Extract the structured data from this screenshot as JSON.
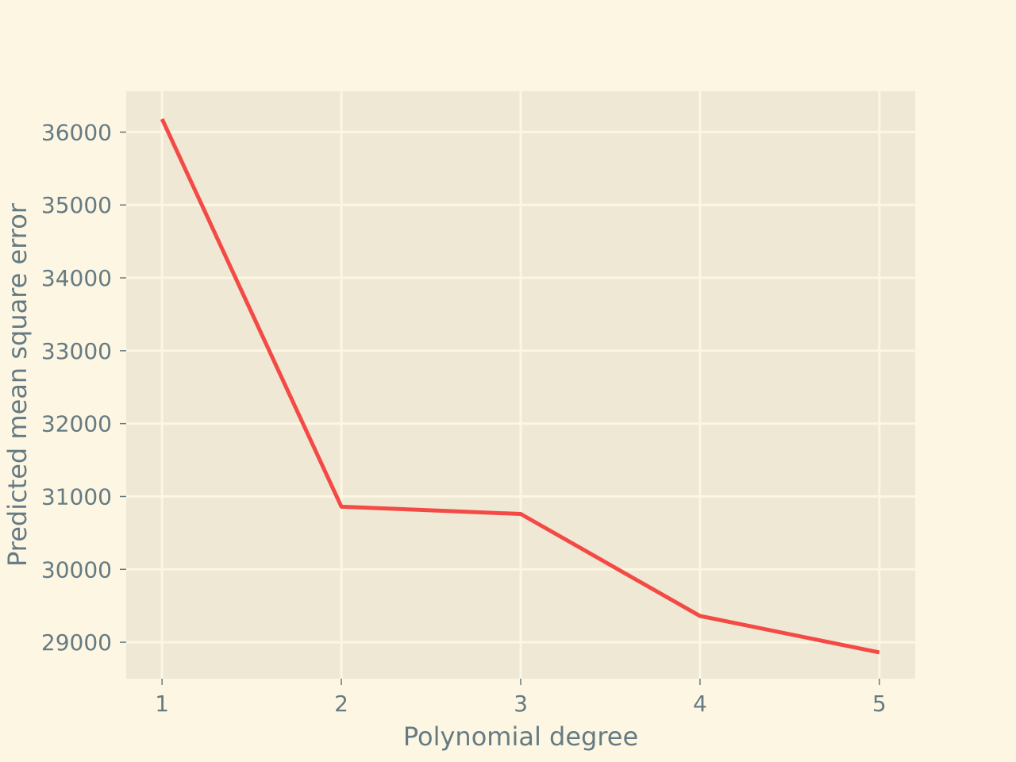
{
  "chart_data": {
    "type": "line",
    "xlabel": "Polynomial degree",
    "ylabel": "Predicted mean square error",
    "x": [
      1,
      2,
      3,
      4,
      5
    ],
    "series": [
      {
        "values": [
          36180,
          30860,
          30760,
          29360,
          28860
        ],
        "color": "#f44a45"
      }
    ],
    "xlim": [
      0.8,
      5.2
    ],
    "ylim": [
      28500,
      36560
    ],
    "xticks": [
      1,
      2,
      3,
      4,
      5
    ],
    "xtick_labels": [
      "1",
      "2",
      "3",
      "4",
      "5"
    ],
    "yticks": [
      29000,
      30000,
      31000,
      32000,
      33000,
      34000,
      35000,
      36000
    ],
    "ytick_labels": [
      "29000",
      "30000",
      "31000",
      "32000",
      "33000",
      "34000",
      "35000",
      "36000"
    ],
    "grid": true
  },
  "colors": {
    "figure_background": "#fdf6e3",
    "plot_background": "#eee8d5",
    "grid": "#fdf6e3",
    "text": "#657b83"
  }
}
